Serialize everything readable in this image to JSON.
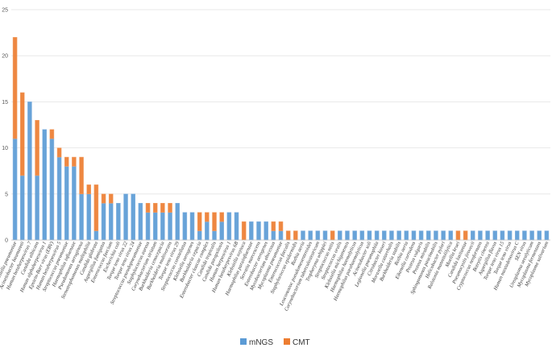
{
  "chart_data": {
    "type": "bar",
    "stacked": true,
    "title": "",
    "xlabel": "",
    "ylabel": "",
    "ylim": [
      0,
      25
    ],
    "yticks": [
      0,
      5,
      10,
      15,
      20,
      25
    ],
    "grid": true,
    "legend": "bottom",
    "colors": {
      "mNGS": "#5b9bd5",
      "CMT": "#ed7d31"
    },
    "categories": [
      "Klebsiella pneumoniae",
      "Acinetobacter baumannii",
      "Human betaherpesvirus 7",
      "Candida albicans",
      "Human alphaherpesvirus 1",
      "Epstein-Barr virus (EBV)",
      "Human betaherpesvirus 5",
      "Streptococcus pneumoniae",
      "Haemophilus influenzae",
      "Pseudomonas aeruginosa",
      "Stenotrophomonas maltophilia",
      "Candida glabrata",
      "Aspergillus fumigatus",
      "Enterococcus faecium",
      "Escherichia coli",
      "Torque teno virus 22",
      "Torque teno virus 24",
      "Streptococcus pseudopneumoniae",
      "Staphylococcus aureus",
      "Corynebacterium striatum",
      "Burkholderia cenocepacia",
      "Burkholderia multivorans",
      "Torque teno virus 29",
      "Streptococcus constellatus",
      "Klebsiella aerogenes",
      "Burkholderia cepacia",
      "Enterobacter cloacae complex",
      "Candida tropicalis",
      "Candida parapsilosis",
      "Human herpesvirus 1",
      "Human betaherpesvirus 6B",
      "Klebsiella oxytoca",
      "Haemophilus parainfluenzae",
      "Serratia marcescens",
      "Enterobacter aerogenes",
      "Mycobacterium abscessus",
      "Mycoplasma pneumoniae",
      "Enterococcus faecalis",
      "Staphylococcus epidermidis",
      "Rothia aeria",
      "Leuconostoc pseudomesenteroides",
      "Corynebacterium tuberculostearicum",
      "Tropheryma whipplei",
      "Streptococcus mitis",
      "Streptococcus oralis",
      "Klebsiella michiganensis",
      "Haemophilus haemolyticus",
      "Haemophilus parahaemolyticus",
      "Acinetobacter soli",
      "Legionella pneumophila",
      "Citrobacter koseri",
      "Moraxella catarrhalis",
      "Burkholderia stabilis",
      "Rothia aeria",
      "Eikenella corrodens",
      "Proteus vulgaris",
      "Proteus mirabilis",
      "Sphingomonas paucimobilis",
      "Helicobacter pylori",
      "Ralstonia mannitolilytica",
      "Moellia kruei",
      "Candida lusitaniae",
      "Pneumocystis jirovecii",
      "Cryptococcus neoformans",
      "Botrytis cinerea",
      "Aspergillus flavus",
      "Torque teno virus 15",
      "Torque teno virus",
      "Human mastadenovirus C",
      "SEN virus",
      "Ureaplasma urealyticum",
      "Mycoplasma fermentans",
      "Mycoplasma salivarium"
    ],
    "series": [
      {
        "name": "mNGS",
        "values": [
          11,
          7,
          15,
          7,
          12,
          11,
          9,
          8,
          8,
          5,
          5,
          1,
          4,
          4,
          4,
          5,
          5,
          4,
          3,
          3,
          3,
          3,
          4,
          3,
          3,
          1,
          2,
          1,
          2,
          3,
          3,
          0,
          2,
          2,
          2,
          1,
          1,
          0,
          0,
          1,
          1,
          1,
          1,
          0,
          1,
          1,
          1,
          1,
          1,
          1,
          1,
          1,
          1,
          1,
          1,
          1,
          1,
          1,
          1,
          1,
          0,
          0,
          1,
          1,
          1,
          1,
          1,
          1,
          1,
          1,
          1,
          1,
          1
        ]
      },
      {
        "name": "CMT",
        "values": [
          11,
          9,
          0,
          6,
          0,
          1,
          1,
          1,
          1,
          4,
          1,
          5,
          1,
          1,
          0,
          0,
          0,
          0,
          1,
          1,
          1,
          1,
          0,
          0,
          0,
          2,
          1,
          2,
          1,
          0,
          0,
          2,
          0,
          0,
          0,
          1,
          1,
          1,
          1,
          0,
          0,
          0,
          0,
          1,
          0,
          0,
          0,
          0,
          0,
          0,
          0,
          0,
          0,
          0,
          0,
          0,
          0,
          0,
          0,
          0,
          1,
          1,
          0,
          0,
          0,
          0,
          0,
          0,
          0,
          0,
          0,
          0,
          0
        ]
      }
    ]
  }
}
